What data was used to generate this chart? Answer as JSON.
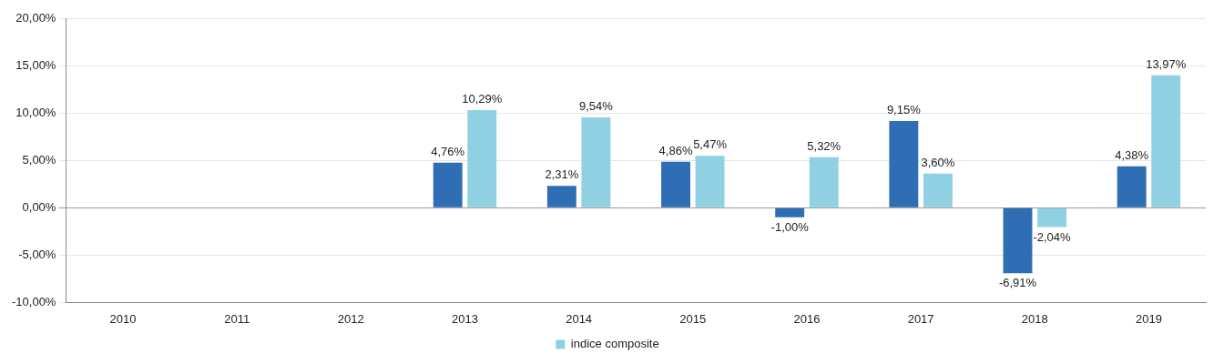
{
  "chart_data": {
    "type": "bar",
    "categories": [
      "2010",
      "2011",
      "2012",
      "2013",
      "2014",
      "2015",
      "2016",
      "2017",
      "2018",
      "2019"
    ],
    "series": [
      {
        "color": "#2f6db5",
        "values": [
          null,
          null,
          null,
          4.76,
          2.31,
          4.86,
          -1.0,
          9.15,
          -6.91,
          4.38
        ],
        "value_labels": [
          null,
          null,
          null,
          "4,76%",
          "2,31%",
          "4,86%",
          "-1,00%",
          "9,15%",
          "-6,91%",
          "4,38%"
        ]
      },
      {
        "name": "indice composite",
        "color": "#8fd0e2",
        "values": [
          null,
          null,
          null,
          10.29,
          9.54,
          5.47,
          5.32,
          3.6,
          -2.04,
          13.97
        ],
        "value_labels": [
          null,
          null,
          null,
          "10,29%",
          "9,54%",
          "5,47%",
          "5,32%",
          "3,60%",
          "-2,04%",
          "13,97%"
        ]
      }
    ],
    "ylim": [
      -10,
      20
    ],
    "yticks": [
      {
        "value": -10,
        "label": "-10,00%"
      },
      {
        "value": -5,
        "label": "-5,00%"
      },
      {
        "value": 0,
        "label": "0,00%"
      },
      {
        "value": 5,
        "label": "5,00%"
      },
      {
        "value": 10,
        "label": "10,00%"
      },
      {
        "value": 15,
        "label": "15,00%"
      },
      {
        "value": 20,
        "label": "20,00%"
      }
    ],
    "grid": "y",
    "legend": "bottom"
  }
}
